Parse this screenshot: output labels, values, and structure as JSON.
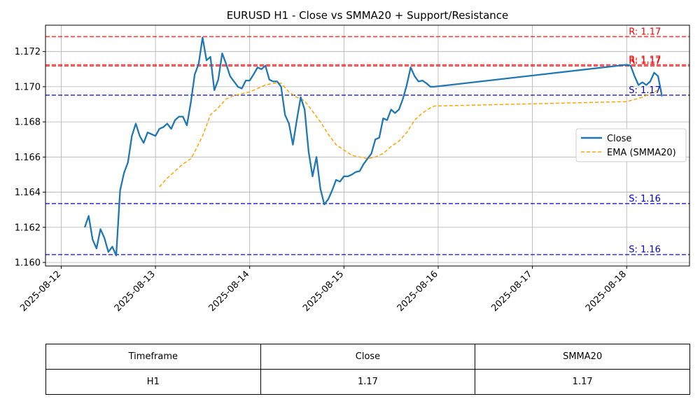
{
  "chart_data": {
    "type": "line",
    "title": "EURUSD H1 - Close vs SMMA20 + Support/Resistance",
    "xlabel": "",
    "ylabel": "",
    "x_tick_labels": [
      "2025-08-12",
      "2025-08-13",
      "2025-08-14",
      "2025-08-15",
      "2025-08-16",
      "2025-08-17",
      "2025-08-18"
    ],
    "y_tick_labels": [
      "1.160",
      "1.162",
      "1.164",
      "1.166",
      "1.168",
      "1.170",
      "1.172"
    ],
    "xlim": [
      "2025-08-11 20:00",
      "2025-08-18 16:00"
    ],
    "ylim": [
      1.1598,
      1.1735
    ],
    "grid": true,
    "legend_position": "center-right",
    "series": [
      {
        "name": "Close",
        "color": "#1f77b4",
        "style": "solid",
        "points": [
          [
            "2025-08-12 06:00",
            1.162
          ],
          [
            "2025-08-12 07:00",
            1.16265
          ],
          [
            "2025-08-12 08:00",
            1.1613
          ],
          [
            "2025-08-12 09:00",
            1.1608
          ],
          [
            "2025-08-12 10:00",
            1.1619
          ],
          [
            "2025-08-12 11:00",
            1.1614
          ],
          [
            "2025-08-12 12:00",
            1.1606
          ],
          [
            "2025-08-12 13:00",
            1.1609
          ],
          [
            "2025-08-12 14:00",
            1.1604
          ],
          [
            "2025-08-12 15:00",
            1.1641
          ],
          [
            "2025-08-12 16:00",
            1.1651
          ],
          [
            "2025-08-12 17:00",
            1.1657
          ],
          [
            "2025-08-12 18:00",
            1.1672
          ],
          [
            "2025-08-12 19:00",
            1.1679
          ],
          [
            "2025-08-12 20:00",
            1.1672
          ],
          [
            "2025-08-12 21:00",
            1.1668
          ],
          [
            "2025-08-12 22:00",
            1.1674
          ],
          [
            "2025-08-12 23:00",
            1.1673
          ],
          [
            "2025-08-13 00:00",
            1.1672
          ],
          [
            "2025-08-13 01:00",
            1.1676
          ],
          [
            "2025-08-13 02:00",
            1.1677
          ],
          [
            "2025-08-13 03:00",
            1.1679
          ],
          [
            "2025-08-13 04:00",
            1.1676
          ],
          [
            "2025-08-13 05:00",
            1.1681
          ],
          [
            "2025-08-13 06:00",
            1.1683
          ],
          [
            "2025-08-13 07:00",
            1.1683
          ],
          [
            "2025-08-13 08:00",
            1.1678
          ],
          [
            "2025-08-13 09:00",
            1.1691
          ],
          [
            "2025-08-13 10:00",
            1.1707
          ],
          [
            "2025-08-13 11:00",
            1.1713
          ],
          [
            "2025-08-13 12:00",
            1.1728
          ],
          [
            "2025-08-13 13:00",
            1.1715
          ],
          [
            "2025-08-13 14:00",
            1.1717
          ],
          [
            "2025-08-13 15:00",
            1.1698
          ],
          [
            "2025-08-13 16:00",
            1.1704
          ],
          [
            "2025-08-13 17:00",
            1.1719
          ],
          [
            "2025-08-13 18:00",
            1.1713
          ],
          [
            "2025-08-13 19:00",
            1.1706
          ],
          [
            "2025-08-13 20:00",
            1.1703
          ],
          [
            "2025-08-13 21:00",
            1.17
          ],
          [
            "2025-08-13 22:00",
            1.1699
          ],
          [
            "2025-08-13 23:00",
            1.17035
          ],
          [
            "2025-08-14 00:00",
            1.17035
          ],
          [
            "2025-08-14 01:00",
            1.1707
          ],
          [
            "2025-08-14 02:00",
            1.1711
          ],
          [
            "2025-08-14 03:00",
            1.171
          ],
          [
            "2025-08-14 04:00",
            1.1712
          ],
          [
            "2025-08-14 05:00",
            1.1704
          ],
          [
            "2025-08-14 06:00",
            1.1703
          ],
          [
            "2025-08-14 07:00",
            1.1703
          ],
          [
            "2025-08-14 08:00",
            1.17
          ],
          [
            "2025-08-14 09:00",
            1.1684
          ],
          [
            "2025-08-14 10:00",
            1.1679
          ],
          [
            "2025-08-14 11:00",
            1.1667
          ],
          [
            "2025-08-14 12:00",
            1.1681
          ],
          [
            "2025-08-14 13:00",
            1.1694
          ],
          [
            "2025-08-14 14:00",
            1.1687
          ],
          [
            "2025-08-14 15:00",
            1.1663
          ],
          [
            "2025-08-14 16:00",
            1.1649
          ],
          [
            "2025-08-14 17:00",
            1.166
          ],
          [
            "2025-08-14 18:00",
            1.1642
          ],
          [
            "2025-08-14 19:00",
            1.1633
          ],
          [
            "2025-08-14 20:00",
            1.1636
          ],
          [
            "2025-08-14 21:00",
            1.1641
          ],
          [
            "2025-08-14 22:00",
            1.1647
          ],
          [
            "2025-08-14 23:00",
            1.1646
          ],
          [
            "2025-08-15 00:00",
            1.1649
          ],
          [
            "2025-08-15 01:00",
            1.1649
          ],
          [
            "2025-08-15 02:00",
            1.165
          ],
          [
            "2025-08-15 03:00",
            1.16515
          ],
          [
            "2025-08-15 04:00",
            1.1652
          ],
          [
            "2025-08-15 05:00",
            1.1656
          ],
          [
            "2025-08-15 06:00",
            1.1659
          ],
          [
            "2025-08-15 07:00",
            1.1662
          ],
          [
            "2025-08-15 08:00",
            1.167
          ],
          [
            "2025-08-15 09:00",
            1.1671
          ],
          [
            "2025-08-15 10:00",
            1.1682
          ],
          [
            "2025-08-15 11:00",
            1.1681
          ],
          [
            "2025-08-15 12:00",
            1.1687
          ],
          [
            "2025-08-15 13:00",
            1.1685
          ],
          [
            "2025-08-15 14:00",
            1.1687
          ],
          [
            "2025-08-15 15:00",
            1.1693
          ],
          [
            "2025-08-15 16:00",
            1.1701
          ],
          [
            "2025-08-15 17:00",
            1.1711
          ],
          [
            "2025-08-15 18:00",
            1.1706
          ],
          [
            "2025-08-15 19:00",
            1.1703
          ],
          [
            "2025-08-15 20:00",
            1.17035
          ],
          [
            "2025-08-15 21:00",
            1.1702
          ],
          [
            "2025-08-15 22:00",
            1.17
          ],
          [
            "2025-08-15 23:00",
            1.17
          ],
          [
            "2025-08-18 00:00",
            1.17125
          ],
          [
            "2025-08-18 01:00",
            1.1712
          ],
          [
            "2025-08-18 02:00",
            1.1706
          ],
          [
            "2025-08-18 03:00",
            1.1701
          ],
          [
            "2025-08-18 04:00",
            1.17025
          ],
          [
            "2025-08-18 05:00",
            1.1701
          ],
          [
            "2025-08-18 06:00",
            1.1703
          ],
          [
            "2025-08-18 07:00",
            1.1708
          ],
          [
            "2025-08-18 08:00",
            1.1706
          ],
          [
            "2025-08-18 09:00",
            1.16945
          ]
        ]
      },
      {
        "name": "EMA (SMMA20)",
        "color": "#ffa500",
        "style": "dashed",
        "points": [
          [
            "2025-08-13 01:00",
            1.1643
          ],
          [
            "2025-08-13 03:00",
            1.1648
          ],
          [
            "2025-08-13 05:00",
            1.1652
          ],
          [
            "2025-08-13 07:00",
            1.1656
          ],
          [
            "2025-08-13 09:00",
            1.1659
          ],
          [
            "2025-08-13 10:00",
            1.1663
          ],
          [
            "2025-08-13 12:00",
            1.1672
          ],
          [
            "2025-08-13 14:00",
            1.1684
          ],
          [
            "2025-08-13 16:00",
            1.1688
          ],
          [
            "2025-08-13 18:00",
            1.1693
          ],
          [
            "2025-08-13 20:00",
            1.1695
          ],
          [
            "2025-08-13 22:00",
            1.1696
          ],
          [
            "2025-08-14 00:00",
            1.1697
          ],
          [
            "2025-08-14 02:00",
            1.1699
          ],
          [
            "2025-08-14 04:00",
            1.1701
          ],
          [
            "2025-08-14 06:00",
            1.1702
          ],
          [
            "2025-08-14 08:00",
            1.1702
          ],
          [
            "2025-08-14 10:00",
            1.1697
          ],
          [
            "2025-08-14 12:00",
            1.1694
          ],
          [
            "2025-08-14 14:00",
            1.1692
          ],
          [
            "2025-08-14 16:00",
            1.1686
          ],
          [
            "2025-08-14 18:00",
            1.168
          ],
          [
            "2025-08-14 20:00",
            1.1673
          ],
          [
            "2025-08-14 22:00",
            1.1667
          ],
          [
            "2025-08-15 00:00",
            1.1664
          ],
          [
            "2025-08-15 02:00",
            1.1661
          ],
          [
            "2025-08-15 04:00",
            1.166
          ],
          [
            "2025-08-15 06:00",
            1.1659
          ],
          [
            "2025-08-15 08:00",
            1.166
          ],
          [
            "2025-08-15 10:00",
            1.1662
          ],
          [
            "2025-08-15 12:00",
            1.1666
          ],
          [
            "2025-08-15 14:00",
            1.1669
          ],
          [
            "2025-08-15 16:00",
            1.1674
          ],
          [
            "2025-08-15 18:00",
            1.1681
          ],
          [
            "2025-08-15 20:00",
            1.1685
          ],
          [
            "2025-08-15 22:00",
            1.1688
          ],
          [
            "2025-08-15 23:00",
            1.1689
          ],
          [
            "2025-08-18 00:00",
            1.16915
          ],
          [
            "2025-08-18 04:00",
            1.1694
          ],
          [
            "2025-08-18 08:00",
            1.1698
          ],
          [
            "2025-08-18 09:00",
            1.1698
          ]
        ]
      }
    ],
    "resistance_levels": [
      {
        "value": 1.17285,
        "label": "R: 1.17"
      },
      {
        "value": 1.17125,
        "label": "R: 1.17"
      },
      {
        "value": 1.17118,
        "label": "R: 1.17"
      }
    ],
    "support_levels": [
      {
        "value": 1.16952,
        "label": "S: 1.17"
      },
      {
        "value": 1.16335,
        "label": "S: 1.16"
      },
      {
        "value": 1.16045,
        "label": "S: 1.16"
      }
    ],
    "colors": {
      "resistance": "#ff0000",
      "support": "#0000cd",
      "grid": "#b0b0b0"
    }
  },
  "table": {
    "headers": [
      "Timeframe",
      "Close",
      "SMMA20"
    ],
    "row": [
      "H1",
      "1.17",
      "1.17"
    ]
  }
}
